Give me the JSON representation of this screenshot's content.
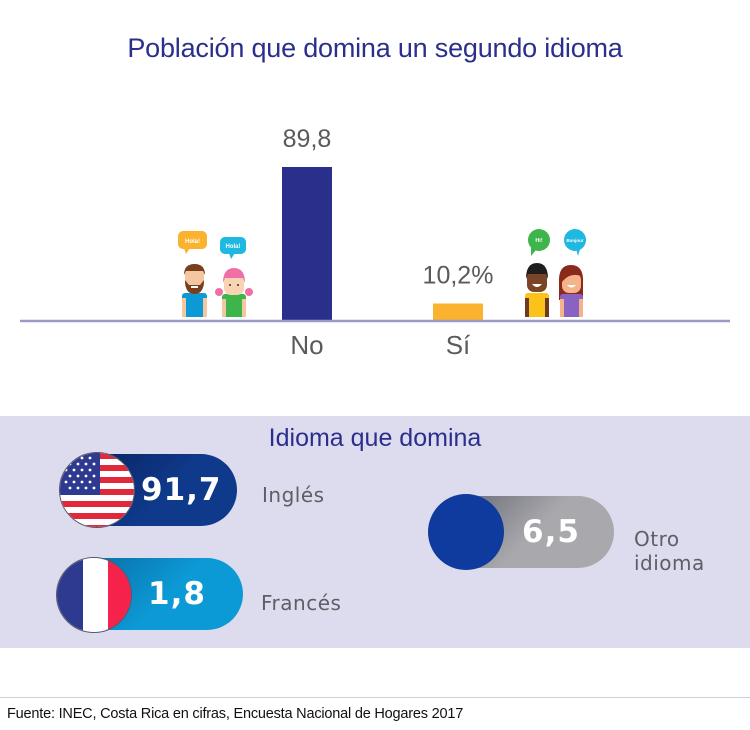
{
  "title": "Población que domina un segundo idioma",
  "chart_data": {
    "type": "bar",
    "title": "Población que domina un segundo idioma",
    "categories": [
      "No",
      "Sí"
    ],
    "values": [
      89.8,
      10.2
    ],
    "data_labels": [
      "89,8",
      "10,2%"
    ],
    "colors": [
      "#2b2f8c",
      "#fbb22f"
    ],
    "xlabel": "",
    "ylabel": "",
    "ylim": [
      0,
      100
    ],
    "grid": false,
    "unit": "%"
  },
  "illustrations": {
    "left": {
      "bubbles": [
        "Hola!",
        "Hola!"
      ],
      "bubble_colors": [
        "#fbb22f",
        "#1fb8e0"
      ]
    },
    "right": {
      "bubbles": [
        "Hi!",
        "Bonjour"
      ],
      "bubble_colors": [
        "#3db54a",
        "#1fb8e0"
      ]
    }
  },
  "languages": {
    "title": "Idioma que domina",
    "items": [
      {
        "name": "Inglés",
        "percent_label": "91,7 %",
        "value": 91.7,
        "flag": "usa-flag",
        "color": "#0f3a8c"
      },
      {
        "name": "Francés",
        "percent_label": "1,8 %",
        "value": 1.8,
        "flag": "france-flag",
        "color": "#0c9ad6"
      },
      {
        "name": "Otro idioma",
        "percent_label": "6,5 %",
        "value": 6.5,
        "flag": "generic-circle",
        "color": "#a9a9ad"
      }
    ]
  },
  "source": "Fuente: INEC, Costa Rica en cifras, Encuesta Nacional de Hogares 2017"
}
